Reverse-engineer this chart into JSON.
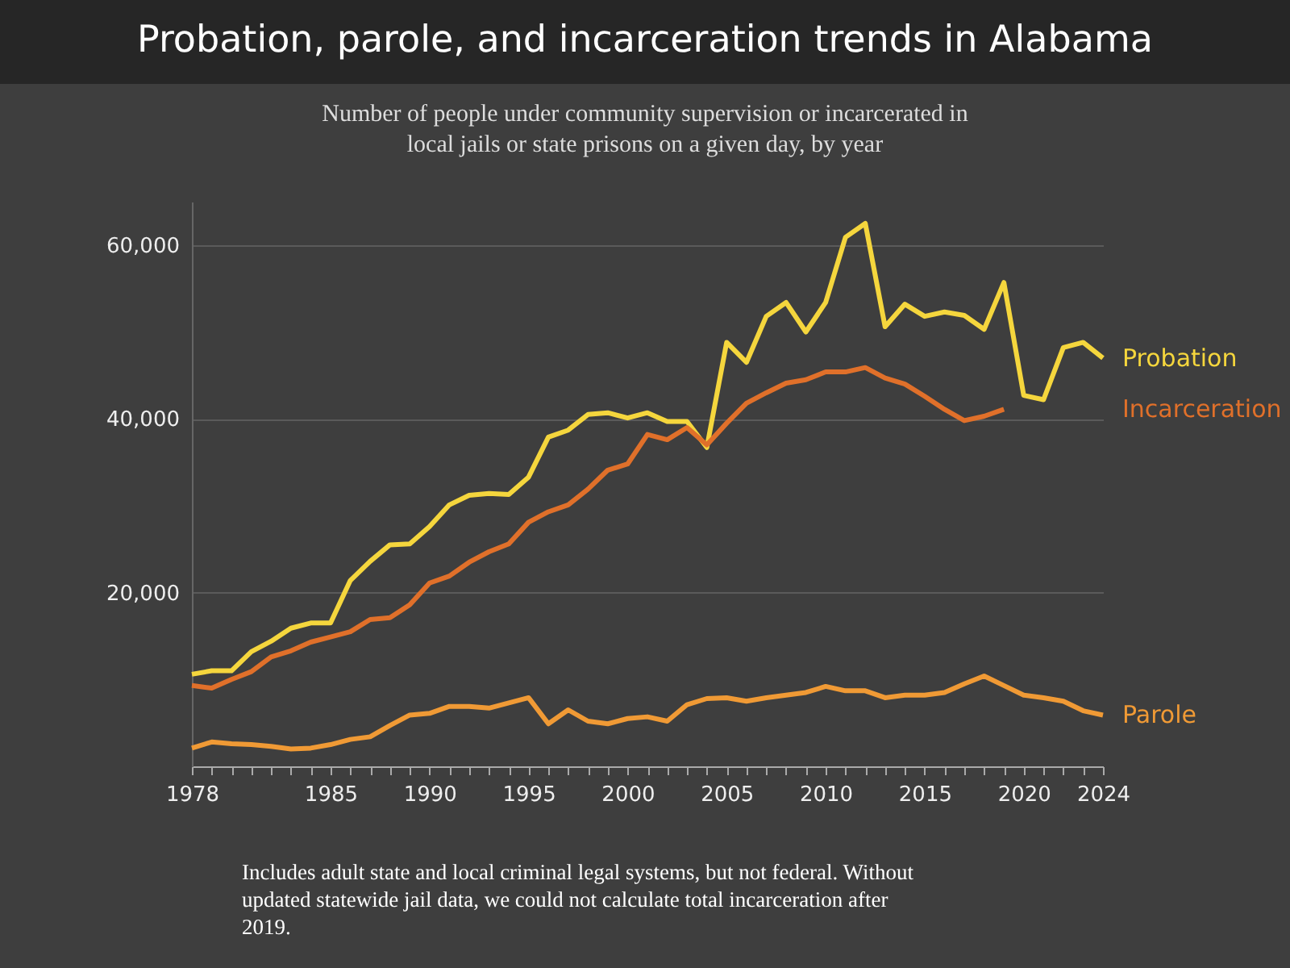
{
  "chart_data": {
    "type": "line",
    "title": "Probation, parole, and incarceration trends in Alabama",
    "subtitle": "Number of people under community supervision or incarcerated in local jails or state prisons on a given day, by year",
    "annotations": [
      "Includes adult state and local criminal legal systems, but not federal. Without updated statewide jail data, we could not calculate total incarceration after 2019."
    ],
    "x": [
      1978,
      1979,
      1980,
      1981,
      1982,
      1983,
      1984,
      1985,
      1986,
      1987,
      1988,
      1989,
      1990,
      1991,
      1992,
      1993,
      1994,
      1995,
      1996,
      1997,
      1998,
      1999,
      2000,
      2001,
      2002,
      2003,
      2004,
      2005,
      2006,
      2007,
      2008,
      2009,
      2010,
      2011,
      2012,
      2013,
      2014,
      2015,
      2016,
      2017,
      2018,
      2019,
      2020,
      2021,
      2022,
      2023,
      2024
    ],
    "series": [
      {
        "name": "Probation",
        "color": "#f5d63d",
        "values": [
          10600,
          11000,
          11000,
          13200,
          14400,
          15900,
          16500,
          16500,
          21400,
          23600,
          25500,
          25600,
          27600,
          30100,
          31200,
          31400,
          31300,
          33300,
          37900,
          38700,
          40500,
          40700,
          40100,
          40700,
          39700,
          39700,
          36700,
          48800,
          46500,
          51800,
          53400,
          50000,
          53400,
          60900,
          62500,
          50600,
          53200,
          51800,
          52300,
          51900,
          50300,
          55700,
          42700,
          42200,
          48200,
          48800,
          47000
        ]
      },
      {
        "name": "Incarceration",
        "color": "#e0702a",
        "values": [
          9300,
          9000,
          10000,
          10900,
          12600,
          13300,
          14300,
          14900,
          15500,
          16900,
          17100,
          18600,
          21100,
          21900,
          23500,
          24700,
          25600,
          28100,
          29300,
          30100,
          31900,
          34100,
          34800,
          38200,
          37600,
          39000,
          37000,
          39500,
          41800,
          43000,
          44100,
          44500,
          45400,
          45400,
          45900,
          44700,
          44000,
          42600,
          41100,
          39800,
          40300,
          41100,
          null,
          null,
          null,
          null,
          null
        ]
      },
      {
        "name": "Parole",
        "color": "#f09a35",
        "values": [
          2100,
          2800,
          2600,
          2500,
          2300,
          2000,
          2100,
          2500,
          3100,
          3400,
          4700,
          5900,
          6100,
          6900,
          6900,
          6700,
          7300,
          7900,
          4900,
          6500,
          5200,
          4900,
          5500,
          5700,
          5200,
          7100,
          7800,
          7900,
          7500,
          7900,
          8200,
          8500,
          9200,
          8700,
          8700,
          7900,
          8200,
          8200,
          8500,
          9500,
          10400,
          9300,
          8200,
          7900,
          7500,
          6400,
          5900
        ]
      }
    ],
    "xlim": [
      1978,
      2024
    ],
    "xticks": [
      1978,
      {
        "value": 1979,
        "label": null
      },
      {
        "value": 1980,
        "label": null
      },
      {
        "value": 1981,
        "label": null
      },
      {
        "value": 1982,
        "label": null
      },
      {
        "value": 1983,
        "label": null
      },
      {
        "value": 1984,
        "label": null
      },
      1985,
      {
        "value": 1986,
        "label": null
      },
      {
        "value": 1987,
        "label": null
      },
      {
        "value": 1988,
        "label": null
      },
      {
        "value": 1989,
        "label": null
      },
      1990,
      {
        "value": 1991,
        "label": null
      },
      {
        "value": 1992,
        "label": null
      },
      {
        "value": 1993,
        "label": null
      },
      {
        "value": 1994,
        "label": null
      },
      1995,
      {
        "value": 1996,
        "label": null
      },
      {
        "value": 1997,
        "label": null
      },
      {
        "value": 1998,
        "label": null
      },
      {
        "value": 1999,
        "label": null
      },
      2000,
      {
        "value": 2001,
        "label": null
      },
      {
        "value": 2002,
        "label": null
      },
      {
        "value": 2003,
        "label": null
      },
      {
        "value": 2004,
        "label": null
      },
      2005,
      {
        "value": 2006,
        "label": null
      },
      {
        "value": 2007,
        "label": null
      },
      {
        "value": 2008,
        "label": null
      },
      {
        "value": 2009,
        "label": null
      },
      2010,
      {
        "value": 2011,
        "label": null
      },
      {
        "value": 2012,
        "label": null
      },
      {
        "value": 2013,
        "label": null
      },
      {
        "value": 2014,
        "label": null
      },
      2015,
      {
        "value": 2016,
        "label": null
      },
      {
        "value": 2017,
        "label": null
      },
      {
        "value": 2018,
        "label": null
      },
      {
        "value": 2019,
        "label": null
      },
      2020,
      {
        "value": 2021,
        "label": null
      },
      {
        "value": 2022,
        "label": null
      },
      {
        "value": 2023,
        "label": null
      },
      2024
    ],
    "ylim": [
      0,
      65000
    ],
    "yticks": [
      {
        "value": 20000,
        "label": "20,000"
      },
      {
        "value": 40000,
        "label": "40,000"
      },
      {
        "value": 60000,
        "label": "60,000"
      }
    ],
    "grid": "y",
    "legend": false,
    "marker": "none",
    "line_style": "solid"
  }
}
